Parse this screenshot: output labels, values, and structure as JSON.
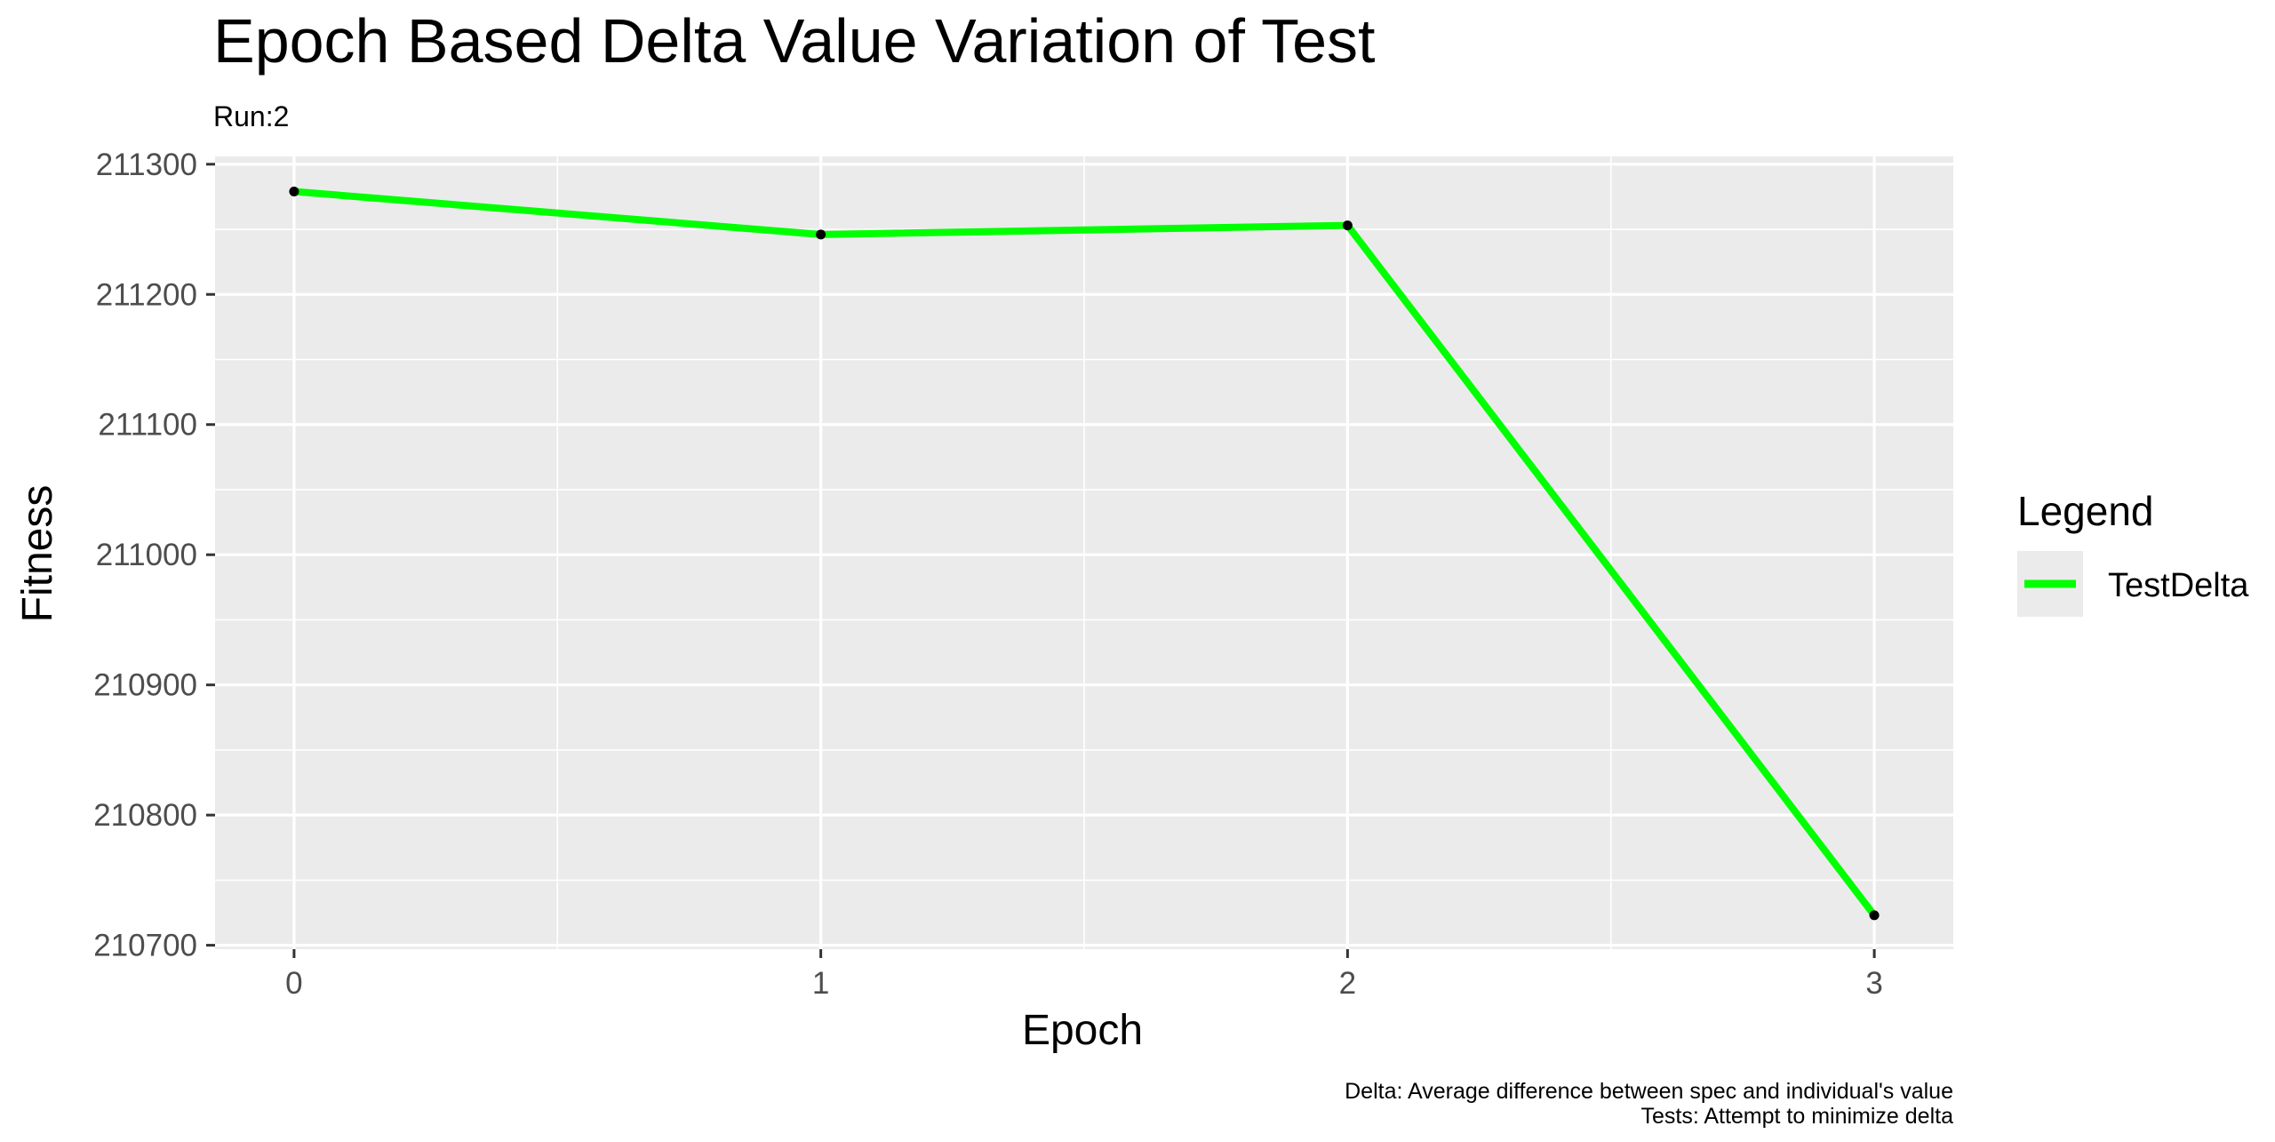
{
  "chart_data": {
    "type": "line",
    "title": "Epoch Based Delta Value Variation of Test",
    "subtitle": "Run:2",
    "xlabel": "Epoch",
    "ylabel": "Fitness",
    "x": [
      0,
      1,
      2,
      3
    ],
    "xticks": [
      "0",
      "1",
      "2",
      "3"
    ],
    "xlim": [
      -0.15,
      3.15
    ],
    "yticks": [
      210700,
      210800,
      210900,
      211000,
      211100,
      211200,
      211300
    ],
    "ylim": [
      210697,
      211306
    ],
    "series": [
      {
        "name": "TestDelta",
        "color": "#00ff00",
        "values": [
          211279,
          211246,
          211253,
          210723
        ]
      }
    ],
    "legend": {
      "title": "Legend",
      "placement": "right"
    },
    "caption": [
      "Delta: Average difference between spec and individual's value",
      "Tests: Attempt to minimize delta"
    ],
    "grid": true,
    "panel_color": "#ebebeb",
    "grid_color": "#ffffff",
    "point_color": "#000000"
  }
}
